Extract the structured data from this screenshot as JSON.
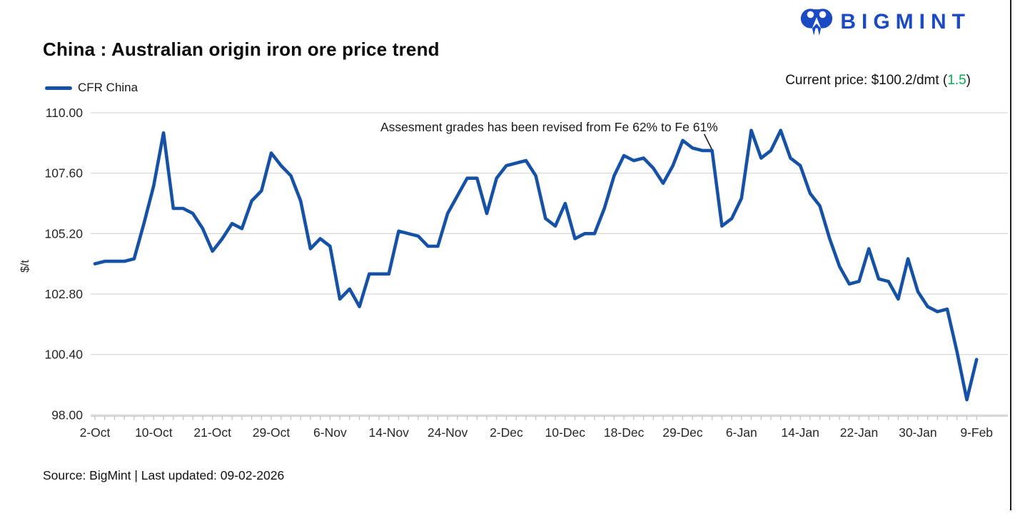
{
  "logo": {
    "text": "BIGMINT"
  },
  "header": {
    "title": "China : Australian origin iron ore price trend",
    "legend_label": "CFR China",
    "current_price_prefix": "Current price: $100.2/dmt (",
    "current_price_change": "1.5",
    "current_price_suffix": ")"
  },
  "annotation": {
    "text": "Assesment grades has been revised from Fe 62% to Fe 61%",
    "target_index": 63
  },
  "footer": {
    "source": "Source: BigMint | Last updated: 09-02-2026"
  },
  "colors": {
    "line": "#1552a6",
    "logo_blue": "#1b4ac2",
    "green": "#00b050",
    "grid": "#d9d9d9",
    "axis": "#bfbfbf",
    "text": "#262626"
  },
  "chart_data": {
    "type": "line",
    "title": "China : Australian origin iron ore price trend",
    "series_name": "CFR China",
    "xlabel": "",
    "ylabel": "$/t",
    "ylim": [
      98.0,
      110.0
    ],
    "y_ticks": [
      110.0,
      107.6,
      105.2,
      102.8,
      100.4,
      98.0
    ],
    "grid": true,
    "legend_position": "top-left",
    "x_tick_labels": [
      "2-Oct",
      "10-Oct",
      "21-Oct",
      "29-Oct",
      "6-Nov",
      "14-Nov",
      "24-Nov",
      "2-Dec",
      "10-Dec",
      "18-Dec",
      "29-Dec",
      "6-Jan",
      "14-Jan",
      "22-Jan",
      "30-Jan",
      "9-Feb"
    ],
    "x_tick_every": 6,
    "dates": [
      "2-Oct",
      "3-Oct",
      "6-Oct",
      "7-Oct",
      "8-Oct",
      "9-Oct",
      "10-Oct",
      "13-Oct",
      "14-Oct",
      "15-Oct",
      "16-Oct",
      "17-Oct",
      "21-Oct",
      "22-Oct",
      "23-Oct",
      "24-Oct",
      "27-Oct",
      "28-Oct",
      "29-Oct",
      "30-Oct",
      "31-Oct",
      "3-Nov",
      "4-Nov",
      "5-Nov",
      "6-Nov",
      "7-Nov",
      "10-Nov",
      "11-Nov",
      "12-Nov",
      "13-Nov",
      "14-Nov",
      "17-Nov",
      "18-Nov",
      "19-Nov",
      "20-Nov",
      "21-Nov",
      "24-Nov",
      "25-Nov",
      "26-Nov",
      "27-Nov",
      "28-Nov",
      "1-Dec",
      "2-Dec",
      "3-Dec",
      "4-Dec",
      "5-Dec",
      "8-Dec",
      "9-Dec",
      "10-Dec",
      "11-Dec",
      "12-Dec",
      "15-Dec",
      "16-Dec",
      "17-Dec",
      "18-Dec",
      "19-Dec",
      "22-Dec",
      "23-Dec",
      "24-Dec",
      "26-Dec",
      "29-Dec",
      "30-Dec",
      "31-Dec",
      "1-Jan",
      "2-Jan",
      "5-Jan",
      "6-Jan",
      "7-Jan",
      "8-Jan",
      "9-Jan",
      "12-Jan",
      "13-Jan",
      "14-Jan",
      "15-Jan",
      "16-Jan",
      "19-Jan",
      "20-Jan",
      "21-Jan",
      "22-Jan",
      "23-Jan",
      "26-Jan",
      "27-Jan",
      "28-Jan",
      "29-Jan",
      "30-Jan",
      "2-Feb",
      "3-Feb",
      "4-Feb",
      "5-Feb",
      "6-Feb",
      "9-Feb"
    ],
    "values": [
      104.0,
      104.1,
      104.1,
      104.1,
      104.2,
      105.6,
      107.1,
      109.2,
      106.2,
      106.2,
      106.0,
      105.4,
      104.5,
      105.0,
      105.6,
      105.4,
      106.5,
      106.9,
      108.4,
      107.9,
      107.5,
      106.5,
      104.6,
      105.0,
      104.7,
      102.6,
      103.0,
      102.3,
      103.6,
      103.6,
      103.6,
      105.3,
      105.2,
      105.1,
      104.7,
      104.7,
      106.0,
      106.7,
      107.4,
      107.4,
      106.0,
      107.4,
      107.9,
      108.0,
      108.1,
      107.5,
      105.8,
      105.5,
      106.4,
      105.0,
      105.2,
      105.2,
      106.2,
      107.5,
      108.3,
      108.1,
      108.2,
      107.8,
      107.2,
      107.9,
      108.9,
      108.6,
      108.5,
      108.5,
      105.5,
      105.8,
      106.6,
      109.3,
      108.2,
      108.5,
      109.3,
      108.2,
      107.9,
      106.8,
      106.3,
      105.0,
      103.9,
      103.2,
      103.3,
      104.6,
      103.4,
      103.3,
      102.6,
      104.2,
      102.9,
      102.3,
      102.1,
      102.2,
      100.5,
      98.6,
      100.2
    ]
  }
}
